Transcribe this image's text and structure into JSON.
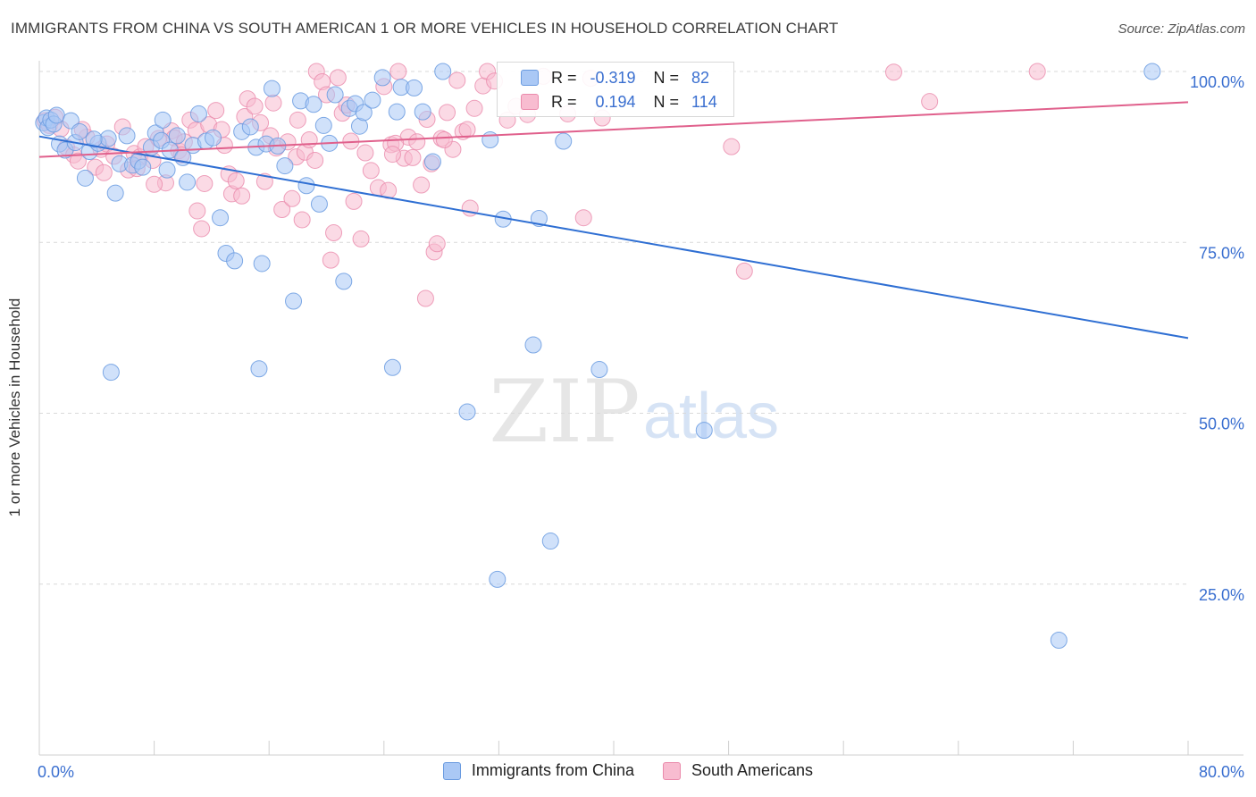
{
  "title": "IMMIGRANTS FROM CHINA VS SOUTH AMERICAN 1 OR MORE VEHICLES IN HOUSEHOLD CORRELATION CHART",
  "source": "Source: ZipAtlas.com",
  "watermark": {
    "zip": "ZIP",
    "atlas": "atlas"
  },
  "legend_top": {
    "rows": [
      {
        "r_label": "R =",
        "r_value": "-0.319",
        "n_label": "N =",
        "n_value": "82"
      },
      {
        "r_label": "R =",
        "r_value": "0.194",
        "n_label": "N =",
        "n_value": "114"
      }
    ]
  },
  "colors": {
    "china_fill": "#aac8f5",
    "china_stroke": "#6a9be0",
    "china_line": "#2f6fd3",
    "south_fill": "#f8bcd0",
    "south_stroke": "#ea8aab",
    "south_line": "#e0608c",
    "tick_label": "#3a6fd0",
    "grid": "#d9d9d9"
  },
  "chart_data": {
    "type": "scatter",
    "title": "IMMIGRANTS FROM CHINA VS SOUTH AMERICAN 1 OR MORE VEHICLES IN HOUSEHOLD CORRELATION CHART",
    "xlabel": "",
    "ylabel": "1 or more Vehicles in Household",
    "xlim": [
      0,
      80
    ],
    "ylim": [
      0,
      100
    ],
    "x_tick_labels": [
      "0.0%",
      "80.0%"
    ],
    "y_ticks": [
      25,
      50,
      75,
      100
    ],
    "y_tick_labels": [
      "25.0%",
      "50.0%",
      "75.0%",
      "100.0%"
    ],
    "grid": true,
    "legend_position": "bottom",
    "series": [
      {
        "name": "Immigrants from China",
        "trend": {
          "x": [
            0,
            80
          ],
          "y": [
            90.5,
            61.0
          ]
        },
        "points": [
          [
            0.3,
            92.5
          ],
          [
            0.5,
            93.2
          ],
          [
            0.6,
            91.8
          ],
          [
            0.8,
            92.9
          ],
          [
            1.0,
            92.3
          ],
          [
            1.2,
            93.6
          ],
          [
            1.4,
            89.4
          ],
          [
            1.8,
            88.5
          ],
          [
            2.2,
            92.8
          ],
          [
            2.5,
            89.6
          ],
          [
            2.8,
            91.2
          ],
          [
            3.2,
            84.4
          ],
          [
            3.5,
            88.3
          ],
          [
            4.1,
            89.5
          ],
          [
            4.8,
            90.2
          ],
          [
            5.3,
            82.2
          ],
          [
            5.6,
            86.5
          ],
          [
            6.1,
            90.6
          ],
          [
            6.5,
            86.3
          ],
          [
            6.9,
            86.9
          ],
          [
            7.2,
            86.0
          ],
          [
            7.8,
            88.9
          ],
          [
            8.1,
            91.0
          ],
          [
            8.5,
            89.9
          ],
          [
            8.6,
            92.9
          ],
          [
            8.9,
            85.6
          ],
          [
            9.1,
            88.5
          ],
          [
            9.6,
            90.6
          ],
          [
            10.0,
            87.4
          ],
          [
            10.3,
            83.8
          ],
          [
            10.7,
            89.2
          ],
          [
            11.1,
            93.8
          ],
          [
            11.6,
            89.8
          ],
          [
            12.1,
            90.3
          ],
          [
            12.6,
            78.6
          ],
          [
            13.0,
            73.4
          ],
          [
            13.6,
            72.3
          ],
          [
            14.1,
            91.2
          ],
          [
            14.7,
            91.9
          ],
          [
            15.1,
            88.9
          ],
          [
            15.5,
            71.9
          ],
          [
            15.8,
            89.4
          ],
          [
            16.2,
            97.5
          ],
          [
            16.6,
            89.1
          ],
          [
            17.1,
            86.2
          ],
          [
            17.7,
            66.4
          ],
          [
            18.2,
            95.7
          ],
          [
            18.6,
            83.3
          ],
          [
            19.1,
            95.2
          ],
          [
            19.5,
            80.6
          ],
          [
            19.8,
            92.1
          ],
          [
            20.2,
            89.5
          ],
          [
            20.6,
            96.6
          ],
          [
            21.2,
            69.3
          ],
          [
            21.6,
            94.6
          ],
          [
            22.0,
            95.3
          ],
          [
            22.3,
            92.0
          ],
          [
            22.6,
            94.0
          ],
          [
            23.2,
            95.8
          ],
          [
            23.9,
            99.1
          ],
          [
            24.6,
            56.7
          ],
          [
            24.9,
            94.1
          ],
          [
            25.2,
            97.7
          ],
          [
            26.1,
            97.6
          ],
          [
            26.7,
            94.1
          ],
          [
            27.4,
            86.8
          ],
          [
            28.1,
            100.0
          ],
          [
            29.8,
            50.2
          ],
          [
            31.4,
            90.0
          ],
          [
            31.9,
            25.7
          ],
          [
            32.3,
            78.4
          ],
          [
            34.4,
            60.0
          ],
          [
            34.8,
            78.5
          ],
          [
            35.6,
            31.3
          ],
          [
            36.5,
            89.8
          ],
          [
            39.0,
            56.4
          ],
          [
            46.3,
            47.5
          ],
          [
            71.0,
            16.8
          ],
          [
            77.5,
            100.0
          ],
          [
            5.0,
            56.0
          ],
          [
            15.3,
            56.5
          ],
          [
            3.8,
            90.1
          ]
        ]
      },
      {
        "name": "South Americans",
        "trend": {
          "x": [
            0,
            80
          ],
          "y": [
            87.5,
            95.5
          ]
        },
        "points": [
          [
            0.4,
            92.8
          ],
          [
            0.7,
            92.1
          ],
          [
            1.1,
            93.3
          ],
          [
            1.5,
            91.6
          ],
          [
            1.9,
            88.9
          ],
          [
            2.4,
            87.8
          ],
          [
            2.7,
            86.9
          ],
          [
            3.3,
            90.4
          ],
          [
            3.9,
            86.0
          ],
          [
            4.3,
            88.6
          ],
          [
            4.7,
            89.4
          ],
          [
            5.2,
            87.6
          ],
          [
            5.8,
            91.9
          ],
          [
            6.2,
            85.6
          ],
          [
            6.6,
            88.0
          ],
          [
            7.0,
            87.5
          ],
          [
            7.4,
            89.0
          ],
          [
            7.9,
            87.0
          ],
          [
            8.3,
            90.2
          ],
          [
            8.8,
            83.7
          ],
          [
            9.2,
            91.3
          ],
          [
            9.4,
            90.3
          ],
          [
            9.7,
            88.4
          ],
          [
            10.1,
            89.7
          ],
          [
            10.5,
            92.9
          ],
          [
            10.9,
            91.4
          ],
          [
            11.0,
            79.6
          ],
          [
            11.3,
            77.0
          ],
          [
            11.8,
            92.2
          ],
          [
            12.3,
            94.3
          ],
          [
            12.7,
            91.5
          ],
          [
            13.2,
            85.0
          ],
          [
            13.4,
            82.1
          ],
          [
            13.7,
            84.0
          ],
          [
            14.3,
            93.4
          ],
          [
            14.5,
            96.0
          ],
          [
            15.0,
            94.9
          ],
          [
            15.4,
            92.5
          ],
          [
            15.7,
            83.9
          ],
          [
            16.1,
            90.6
          ],
          [
            16.5,
            88.8
          ],
          [
            16.9,
            79.8
          ],
          [
            17.3,
            89.7
          ],
          [
            17.6,
            81.4
          ],
          [
            17.9,
            87.5
          ],
          [
            18.3,
            78.3
          ],
          [
            18.5,
            88.2
          ],
          [
            18.8,
            90.0
          ],
          [
            19.2,
            87.0
          ],
          [
            19.3,
            100.0
          ],
          [
            19.7,
            98.5
          ],
          [
            20.0,
            96.6
          ],
          [
            20.3,
            72.4
          ],
          [
            20.5,
            76.4
          ],
          [
            20.8,
            99.1
          ],
          [
            21.1,
            93.9
          ],
          [
            21.4,
            95.1
          ],
          [
            21.9,
            81.0
          ],
          [
            22.4,
            75.5
          ],
          [
            22.7,
            88.1
          ],
          [
            23.1,
            85.5
          ],
          [
            23.6,
            83.0
          ],
          [
            24.0,
            97.8
          ],
          [
            24.3,
            82.6
          ],
          [
            24.5,
            89.3
          ],
          [
            25.0,
            100.0
          ],
          [
            25.4,
            87.3
          ],
          [
            25.7,
            90.4
          ],
          [
            26.0,
            87.4
          ],
          [
            26.3,
            89.7
          ],
          [
            26.6,
            83.4
          ],
          [
            27.0,
            93.0
          ],
          [
            27.3,
            86.5
          ],
          [
            27.5,
            73.6
          ],
          [
            27.7,
            74.8
          ],
          [
            28.0,
            90.2
          ],
          [
            28.4,
            94.0
          ],
          [
            28.8,
            88.6
          ],
          [
            29.1,
            98.7
          ],
          [
            29.5,
            91.2
          ],
          [
            30.0,
            80.0
          ],
          [
            30.3,
            94.6
          ],
          [
            30.9,
            97.9
          ],
          [
            31.2,
            100.0
          ],
          [
            31.7,
            98.6
          ],
          [
            32.6,
            92.9
          ],
          [
            33.2,
            94.9
          ],
          [
            34.0,
            93.7
          ],
          [
            35.1,
            99.3
          ],
          [
            36.8,
            93.8
          ],
          [
            37.9,
            78.6
          ],
          [
            38.4,
            99.0
          ],
          [
            39.2,
            93.2
          ],
          [
            48.2,
            89.0
          ],
          [
            49.1,
            70.8
          ],
          [
            59.5,
            99.9
          ],
          [
            62.0,
            95.6
          ],
          [
            69.5,
            100.0
          ],
          [
            3.0,
            91.5
          ],
          [
            4.5,
            85.2
          ],
          [
            6.8,
            85.8
          ],
          [
            8.0,
            83.5
          ],
          [
            9.9,
            87.8
          ],
          [
            11.5,
            83.6
          ],
          [
            12.9,
            89.2
          ],
          [
            14.1,
            81.8
          ],
          [
            16.3,
            95.4
          ],
          [
            18.0,
            92.9
          ],
          [
            21.7,
            89.8
          ],
          [
            24.8,
            89.5
          ],
          [
            26.9,
            66.8
          ],
          [
            28.2,
            90.0
          ],
          [
            24.6,
            87.9
          ],
          [
            29.8,
            91.5
          ]
        ]
      }
    ]
  }
}
